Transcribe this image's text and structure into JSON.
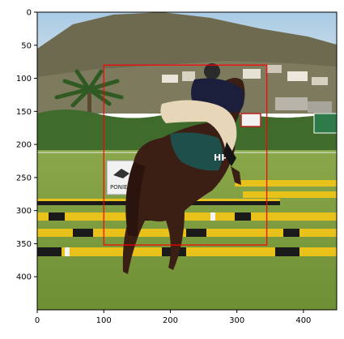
{
  "image_description_scene": {
    "sky_color": "#9ec3e3",
    "hill_color": "#6c6a4f",
    "grass_color": "#7a9a3c",
    "hedge_color": "#3e6a2c",
    "horse_color": "#3b1e14",
    "rider_jacket_color": "#1b1f3b",
    "rider_breeches_color": "#e8d6b8",
    "pole_yellow": "#e8c21a",
    "pole_black": "#1a1a1a",
    "pole_white": "#f4f4f4"
  },
  "signs": {
    "left_board_text": "PONIE",
    "horse_number_text": "HP"
  },
  "annotation": {
    "box_color": "#ff0000",
    "box_xmin": 100,
    "box_ymin": 80,
    "box_xmax": 345,
    "box_ymax": 352
  },
  "axes": {
    "x_ticks": [
      "0",
      "100",
      "200",
      "300",
      "400"
    ],
    "y_ticks": [
      "0",
      "50",
      "100",
      "150",
      "200",
      "250",
      "300",
      "350",
      "400"
    ],
    "image_width": 450,
    "image_height": 450
  }
}
